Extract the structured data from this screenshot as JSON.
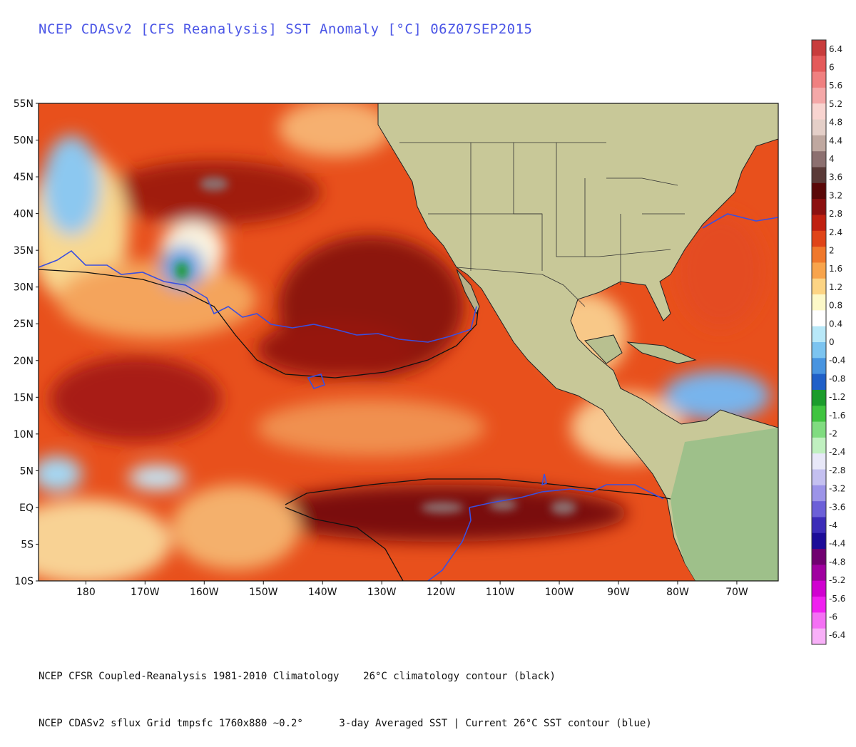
{
  "title": "NCEP CDASv2 [CFS Reanalysis] SST Anomaly [°C] 06Z07SEP2015",
  "map": {
    "lat_labels": [
      "55N",
      "50N",
      "45N",
      "40N",
      "35N",
      "30N",
      "25N",
      "20N",
      "15N",
      "10N",
      "5N",
      "EQ",
      "5S",
      "10S"
    ],
    "lat_values": [
      55,
      50,
      45,
      40,
      35,
      30,
      25,
      20,
      15,
      10,
      5,
      0,
      -5,
      -10
    ],
    "lon_labels": [
      "180",
      "170W",
      "160W",
      "150W",
      "140W",
      "130W",
      "120W",
      "110W",
      "100W",
      "90W",
      "80W",
      "70W"
    ],
    "lon_values": [
      -180,
      -170,
      -160,
      -150,
      -140,
      -130,
      -120,
      -110,
      -100,
      -90,
      -80,
      -70
    ],
    "extent": {
      "lon_min": -188,
      "lon_max": -63,
      "lat_min": -10,
      "lat_max": 55
    },
    "contours": {
      "climatology_26C": {
        "label": "26°C climatology contour (black)",
        "color": "#111111"
      },
      "current_26C": {
        "label": "Current 26°C SST contour (blue)",
        "color": "#3a4fe0"
      }
    }
  },
  "colorbar": {
    "labels": [
      "6.4",
      "6",
      "5.6",
      "5.2",
      "4.8",
      "4.4",
      "4",
      "3.6",
      "3.2",
      "2.8",
      "2.4",
      "2",
      "1.6",
      "1.2",
      "0.8",
      "0.4",
      "0",
      "-0.4",
      "-0.8",
      "-1.2",
      "-1.6",
      "-2",
      "-2.4",
      "-2.8",
      "-3.2",
      "-3.6",
      "-4",
      "-4.4",
      "-4.8",
      "-5.2",
      "-5.6",
      "-6",
      "-6.4"
    ],
    "colors": [
      "#c83c3c",
      "#e45a5a",
      "#f08080",
      "#f4a8a8",
      "#f8d4d0",
      "#e4cfc8",
      "#bfa8a0",
      "#8c7070",
      "#5a3a38",
      "#5a0808",
      "#8c1010",
      "#c02010",
      "#e04418",
      "#f0782c",
      "#f8a44c",
      "#fcd484",
      "#fcf8c8",
      "#ffffff",
      "#b8e8f8",
      "#7cc4f0",
      "#4894e0",
      "#2060c8",
      "#1c9c2c",
      "#40c440",
      "#80dc80",
      "#c0f0c0",
      "#e8e8f8",
      "#c4c0f0",
      "#9c94e8",
      "#6c60d8",
      "#3c2cb8",
      "#1c0c98",
      "#700070",
      "#a000a0",
      "#d000d0",
      "#f020f0",
      "#f470f4",
      "#f8b0f8"
    ]
  },
  "footer": {
    "line1": "NCEP CFSR Coupled-Reanalysis 1981-2010 Climatology    26°C climatology contour (black)",
    "line2": "NCEP CDASv2 sflux Grid tmpsfc 1760x880 ~0.2°      3-day Averaged SST | Current 26°C SST contour (blue)"
  }
}
